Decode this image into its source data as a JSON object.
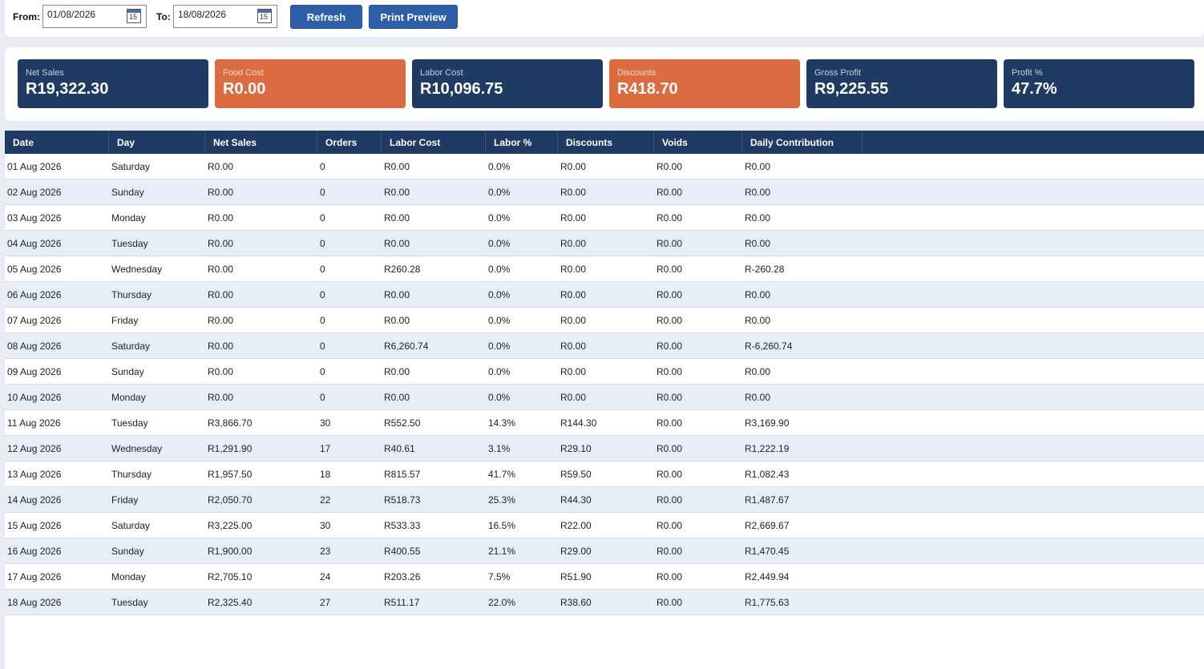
{
  "toolbar": {
    "from_label": "From:",
    "from_value": "01/08/2026",
    "to_label": "To:",
    "to_value": "18/08/2026",
    "calendar_day": "15",
    "refresh_label": "Refresh",
    "print_label": "Print Preview"
  },
  "kpis": [
    {
      "label": "Net Sales",
      "value": "R19,322.30",
      "color": "#1f3a63"
    },
    {
      "label": "Food Cost",
      "value": "R0.00",
      "color": "#dc6b40"
    },
    {
      "label": "Labor Cost",
      "value": "R10,096.75",
      "color": "#1f3a63"
    },
    {
      "label": "Discounts",
      "value": "R418.70",
      "color": "#dc6b40"
    },
    {
      "label": "Gross Profit",
      "value": "R9,225.55",
      "color": "#1f3a63"
    },
    {
      "label": "Profit %",
      "value": "47.7%",
      "color": "#1f3a63"
    }
  ],
  "table": {
    "headers": [
      "Date",
      "Day",
      "Net Sales",
      "Orders",
      "Labor Cost",
      "Labor %",
      "Discounts",
      "Voids",
      "Daily Contribution"
    ],
    "rows": [
      [
        "01 Aug 2026",
        "Saturday",
        "R0.00",
        "0",
        "R0.00",
        "0.0%",
        "R0.00",
        "R0.00",
        "R0.00"
      ],
      [
        "02 Aug 2026",
        "Sunday",
        "R0.00",
        "0",
        "R0.00",
        "0.0%",
        "R0.00",
        "R0.00",
        "R0.00"
      ],
      [
        "03 Aug 2026",
        "Monday",
        "R0.00",
        "0",
        "R0.00",
        "0.0%",
        "R0.00",
        "R0.00",
        "R0.00"
      ],
      [
        "04 Aug 2026",
        "Tuesday",
        "R0.00",
        "0",
        "R0.00",
        "0.0%",
        "R0.00",
        "R0.00",
        "R0.00"
      ],
      [
        "05 Aug 2026",
        "Wednesday",
        "R0.00",
        "0",
        "R260.28",
        "0.0%",
        "R0.00",
        "R0.00",
        "R-260.28"
      ],
      [
        "06 Aug 2026",
        "Thursday",
        "R0.00",
        "0",
        "R0.00",
        "0.0%",
        "R0.00",
        "R0.00",
        "R0.00"
      ],
      [
        "07 Aug 2026",
        "Friday",
        "R0.00",
        "0",
        "R0.00",
        "0.0%",
        "R0.00",
        "R0.00",
        "R0.00"
      ],
      [
        "08 Aug 2026",
        "Saturday",
        "R0.00",
        "0",
        "R6,260.74",
        "0.0%",
        "R0.00",
        "R0.00",
        "R-6,260.74"
      ],
      [
        "09 Aug 2026",
        "Sunday",
        "R0.00",
        "0",
        "R0.00",
        "0.0%",
        "R0.00",
        "R0.00",
        "R0.00"
      ],
      [
        "10 Aug 2026",
        "Monday",
        "R0.00",
        "0",
        "R0.00",
        "0.0%",
        "R0.00",
        "R0.00",
        "R0.00"
      ],
      [
        "11 Aug 2026",
        "Tuesday",
        "R3,866.70",
        "30",
        "R552.50",
        "14.3%",
        "R144.30",
        "R0.00",
        "R3,169.90"
      ],
      [
        "12 Aug 2026",
        "Wednesday",
        "R1,291.90",
        "17",
        "R40.61",
        "3.1%",
        "R29.10",
        "R0.00",
        "R1,222.19"
      ],
      [
        "13 Aug 2026",
        "Thursday",
        "R1,957.50",
        "18",
        "R815.57",
        "41.7%",
        "R59.50",
        "R0.00",
        "R1,082.43"
      ],
      [
        "14 Aug 2026",
        "Friday",
        "R2,050.70",
        "22",
        "R518.73",
        "25.3%",
        "R44.30",
        "R0.00",
        "R1,487.67"
      ],
      [
        "15 Aug 2026",
        "Saturday",
        "R3,225.00",
        "30",
        "R533.33",
        "16.5%",
        "R22.00",
        "R0.00",
        "R2,669.67"
      ],
      [
        "16 Aug 2026",
        "Sunday",
        "R1,900.00",
        "23",
        "R400.55",
        "21.1%",
        "R29.00",
        "R0.00",
        "R1,470.45"
      ],
      [
        "17 Aug 2026",
        "Monday",
        "R2,705.10",
        "24",
        "R203.26",
        "7.5%",
        "R51.90",
        "R0.00",
        "R2,449.94"
      ],
      [
        "18 Aug 2026",
        "Tuesday",
        "R2,325.40",
        "27",
        "R511.17",
        "22.0%",
        "R38.60",
        "R0.00",
        "R1,775.63"
      ]
    ]
  }
}
